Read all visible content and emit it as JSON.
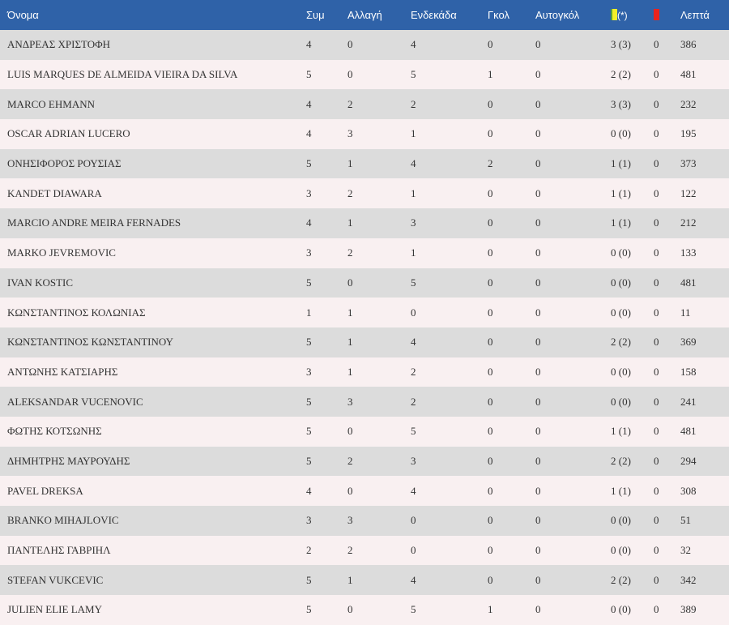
{
  "headers": {
    "name": "Όνομα",
    "apps": "Συμ",
    "subs": "Αλλαγή",
    "starts": "Ενδεκάδα",
    "goals": "Γκολ",
    "own_goals": "Αυτογκόλ",
    "yellow_icon": "yellow-card-icon",
    "yellow_suffix": "(*)",
    "red_icon": "red-card-icon",
    "minutes": "Λεπτά"
  },
  "colors": {
    "header_bg": "#2f62a8",
    "row_odd": "#dcdcdc",
    "row_even": "#f9f0f1",
    "yellow_card": "#f4ee2a",
    "red_card": "#e8231f"
  },
  "players": [
    {
      "name": "ΑΝΔΡΕΑΣ ΧΡΙΣΤΟΦΗ",
      "apps": "4",
      "subs": "0",
      "starts": "4",
      "goals": "0",
      "own_goals": "0",
      "yellow": "3 (3)",
      "red": "0",
      "minutes": "386"
    },
    {
      "name": "LUIS MARQUES DE ALMEIDA VIEIRA DA SILVA",
      "apps": "5",
      "subs": "0",
      "starts": "5",
      "goals": "1",
      "own_goals": "0",
      "yellow": "2 (2)",
      "red": "0",
      "minutes": "481"
    },
    {
      "name": "MARCO EHMANN",
      "apps": "4",
      "subs": "2",
      "starts": "2",
      "goals": "0",
      "own_goals": "0",
      "yellow": "3 (3)",
      "red": "0",
      "minutes": "232"
    },
    {
      "name": "OSCAR ADRIAN LUCERO",
      "apps": "4",
      "subs": "3",
      "starts": "1",
      "goals": "0",
      "own_goals": "0",
      "yellow": "0 (0)",
      "red": "0",
      "minutes": "195"
    },
    {
      "name": "ΟΝΗΣΙΦΟΡΟΣ ΡΟΥΣΙΑΣ",
      "apps": "5",
      "subs": "1",
      "starts": "4",
      "goals": "2",
      "own_goals": "0",
      "yellow": "1 (1)",
      "red": "0",
      "minutes": "373"
    },
    {
      "name": "KANDET DIAWARA",
      "apps": "3",
      "subs": "2",
      "starts": "1",
      "goals": "0",
      "own_goals": "0",
      "yellow": "1 (1)",
      "red": "0",
      "minutes": "122"
    },
    {
      "name": "MARCIO ANDRE MEIRA FERNADES",
      "apps": "4",
      "subs": "1",
      "starts": "3",
      "goals": "0",
      "own_goals": "0",
      "yellow": "1 (1)",
      "red": "0",
      "minutes": "212"
    },
    {
      "name": "MARKO JEVREMOVIC",
      "apps": "3",
      "subs": "2",
      "starts": "1",
      "goals": "0",
      "own_goals": "0",
      "yellow": "0 (0)",
      "red": "0",
      "minutes": "133"
    },
    {
      "name": "IVAN KOSTIC",
      "apps": "5",
      "subs": "0",
      "starts": "5",
      "goals": "0",
      "own_goals": "0",
      "yellow": "0 (0)",
      "red": "0",
      "minutes": "481"
    },
    {
      "name": "ΚΩΝΣΤΑΝΤΙΝΟΣ ΚΟΛΩΝΙΑΣ",
      "apps": "1",
      "subs": "1",
      "starts": "0",
      "goals": "0",
      "own_goals": "0",
      "yellow": "0 (0)",
      "red": "0",
      "minutes": "11"
    },
    {
      "name": "ΚΩΝΣΤΑΝΤΙΝΟΣ ΚΩΝΣΤΑΝΤΙΝΟΥ",
      "apps": "5",
      "subs": "1",
      "starts": "4",
      "goals": "0",
      "own_goals": "0",
      "yellow": "2 (2)",
      "red": "0",
      "minutes": "369"
    },
    {
      "name": "ΑΝΤΩΝΗΣ ΚΑΤΣΙΑΡΗΣ",
      "apps": "3",
      "subs": "1",
      "starts": "2",
      "goals": "0",
      "own_goals": "0",
      "yellow": "0 (0)",
      "red": "0",
      "minutes": "158"
    },
    {
      "name": "ALEKSANDAR VUCENOVIC",
      "apps": "5",
      "subs": "3",
      "starts": "2",
      "goals": "0",
      "own_goals": "0",
      "yellow": "0 (0)",
      "red": "0",
      "minutes": "241"
    },
    {
      "name": "ΦΩΤΗΣ ΚΟΤΣΩΝΗΣ",
      "apps": "5",
      "subs": "0",
      "starts": "5",
      "goals": "0",
      "own_goals": "0",
      "yellow": "1 (1)",
      "red": "0",
      "minutes": "481"
    },
    {
      "name": "ΔΗΜΗΤΡΗΣ ΜΑΥΡΟΥΔΗΣ",
      "apps": "5",
      "subs": "2",
      "starts": "3",
      "goals": "0",
      "own_goals": "0",
      "yellow": "2 (2)",
      "red": "0",
      "minutes": "294"
    },
    {
      "name": "PAVEL DREKSA",
      "apps": "4",
      "subs": "0",
      "starts": "4",
      "goals": "0",
      "own_goals": "0",
      "yellow": "1 (1)",
      "red": "0",
      "minutes": "308"
    },
    {
      "name": "BRANKO MIHAJLOVIC",
      "apps": "3",
      "subs": "3",
      "starts": "0",
      "goals": "0",
      "own_goals": "0",
      "yellow": "0 (0)",
      "red": "0",
      "minutes": "51"
    },
    {
      "name": "ΠΑΝΤΕΛΗΣ ΓΑΒΡΙΗΛ",
      "apps": "2",
      "subs": "2",
      "starts": "0",
      "goals": "0",
      "own_goals": "0",
      "yellow": "0 (0)",
      "red": "0",
      "minutes": "32"
    },
    {
      "name": "STEFAN VUKCEVIC",
      "apps": "5",
      "subs": "1",
      "starts": "4",
      "goals": "0",
      "own_goals": "0",
      "yellow": "2 (2)",
      "red": "0",
      "minutes": "342"
    },
    {
      "name": "JULIEN ELIE LAMY",
      "apps": "5",
      "subs": "0",
      "starts": "5",
      "goals": "1",
      "own_goals": "0",
      "yellow": "0 (0)",
      "red": "0",
      "minutes": "389"
    }
  ]
}
